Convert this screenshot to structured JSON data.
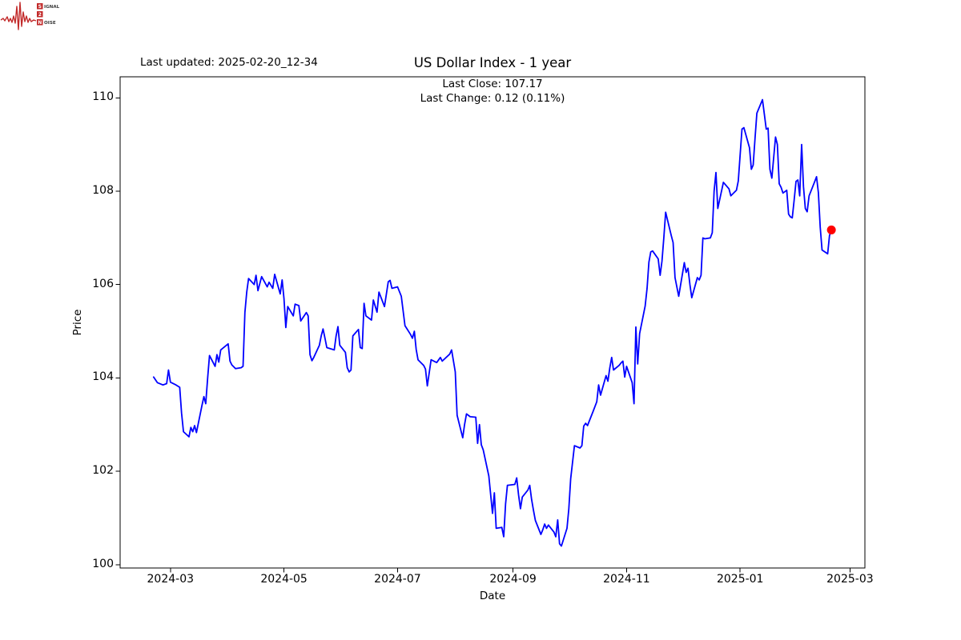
{
  "annotations": {
    "last_updated": "Last updated: 2025-02-20_12-34"
  },
  "logo": {
    "row1_initial": "S",
    "row1_rest": "IGNAL",
    "row2_initial": "2",
    "row3_initial": "N",
    "row3_rest": "OISE",
    "color": "#c22a2a"
  },
  "chart_data": {
    "type": "line",
    "title": "US Dollar Index - 1 year",
    "subtitle_line1": "Last Close: 107.17",
    "subtitle_line2": "Last Change: 0.12 (0.11%)",
    "xlabel": "Date",
    "ylabel": "Price",
    "line_color": "#0000ff",
    "marker_color": "#ff0000",
    "background": "#ffffff",
    "grid": false,
    "xlim": [
      "2024-02-03",
      "2025-03-09"
    ],
    "ylim": [
      99.93,
      110.45
    ],
    "y_ticks": [
      100,
      102,
      104,
      106,
      108,
      110
    ],
    "x_ticks": [
      {
        "date": "2024-03-01",
        "label": "2024-03"
      },
      {
        "date": "2024-05-01",
        "label": "2024-05"
      },
      {
        "date": "2024-07-01",
        "label": "2024-07"
      },
      {
        "date": "2024-09-01",
        "label": "2024-09"
      },
      {
        "date": "2024-11-01",
        "label": "2024-11"
      },
      {
        "date": "2025-01-01",
        "label": "2025-01"
      },
      {
        "date": "2025-03-01",
        "label": "2025-03"
      }
    ],
    "last_point": {
      "date": "2025-02-19",
      "price": 107.17
    },
    "series": [
      {
        "name": "US Dollar Index",
        "points": [
          [
            "2024-02-21",
            104.02
          ],
          [
            "2024-02-23",
            103.9
          ],
          [
            "2024-02-26",
            103.85
          ],
          [
            "2024-02-28",
            103.88
          ],
          [
            "2024-02-29",
            104.17
          ],
          [
            "2024-03-01",
            103.91
          ],
          [
            "2024-03-04",
            103.85
          ],
          [
            "2024-03-06",
            103.8
          ],
          [
            "2024-03-07",
            103.25
          ],
          [
            "2024-03-08",
            102.85
          ],
          [
            "2024-03-11",
            102.74
          ],
          [
            "2024-03-12",
            102.94
          ],
          [
            "2024-03-13",
            102.85
          ],
          [
            "2024-03-14",
            102.98
          ],
          [
            "2024-03-15",
            102.83
          ],
          [
            "2024-03-18",
            103.42
          ],
          [
            "2024-03-19",
            103.6
          ],
          [
            "2024-03-20",
            103.45
          ],
          [
            "2024-03-21",
            104.0
          ],
          [
            "2024-03-22",
            104.48
          ],
          [
            "2024-03-25",
            104.25
          ],
          [
            "2024-03-26",
            104.5
          ],
          [
            "2024-03-27",
            104.34
          ],
          [
            "2024-03-28",
            104.6
          ],
          [
            "2024-04-01",
            104.73
          ],
          [
            "2024-04-02",
            104.36
          ],
          [
            "2024-04-03",
            104.28
          ],
          [
            "2024-04-05",
            104.2
          ],
          [
            "2024-04-08",
            104.22
          ],
          [
            "2024-04-09",
            104.25
          ],
          [
            "2024-04-10",
            105.4
          ],
          [
            "2024-04-11",
            105.84
          ],
          [
            "2024-04-12",
            106.13
          ],
          [
            "2024-04-15",
            106.0
          ],
          [
            "2024-04-16",
            106.2
          ],
          [
            "2024-04-17",
            105.87
          ],
          [
            "2024-04-19",
            106.17
          ],
          [
            "2024-04-22",
            105.95
          ],
          [
            "2024-04-23",
            106.05
          ],
          [
            "2024-04-25",
            105.92
          ],
          [
            "2024-04-26",
            106.22
          ],
          [
            "2024-04-29",
            105.8
          ],
          [
            "2024-04-30",
            106.1
          ],
          [
            "2024-05-01",
            105.7
          ],
          [
            "2024-05-02",
            105.08
          ],
          [
            "2024-05-03",
            105.53
          ],
          [
            "2024-05-06",
            105.33
          ],
          [
            "2024-05-07",
            105.58
          ],
          [
            "2024-05-09",
            105.55
          ],
          [
            "2024-05-10",
            105.22
          ],
          [
            "2024-05-13",
            105.4
          ],
          [
            "2024-05-14",
            105.33
          ],
          [
            "2024-05-15",
            104.5
          ],
          [
            "2024-05-16",
            104.37
          ],
          [
            "2024-05-17",
            104.44
          ],
          [
            "2024-05-20",
            104.7
          ],
          [
            "2024-05-21",
            104.9
          ],
          [
            "2024-05-22",
            105.05
          ],
          [
            "2024-05-23",
            104.85
          ],
          [
            "2024-05-24",
            104.65
          ],
          [
            "2024-05-28",
            104.6
          ],
          [
            "2024-05-29",
            104.9
          ],
          [
            "2024-05-30",
            105.1
          ],
          [
            "2024-05-31",
            104.7
          ],
          [
            "2024-06-03",
            104.55
          ],
          [
            "2024-06-04",
            104.22
          ],
          [
            "2024-06-05",
            104.13
          ],
          [
            "2024-06-06",
            104.17
          ],
          [
            "2024-06-07",
            104.9
          ],
          [
            "2024-06-10",
            105.04
          ],
          [
            "2024-06-11",
            104.65
          ],
          [
            "2024-06-12",
            104.63
          ],
          [
            "2024-06-13",
            105.6
          ],
          [
            "2024-06-14",
            105.33
          ],
          [
            "2024-06-17",
            105.24
          ],
          [
            "2024-06-18",
            105.67
          ],
          [
            "2024-06-20",
            105.41
          ],
          [
            "2024-06-21",
            105.84
          ],
          [
            "2024-06-24",
            105.53
          ],
          [
            "2024-06-26",
            106.06
          ],
          [
            "2024-06-27",
            106.09
          ],
          [
            "2024-06-28",
            105.92
          ],
          [
            "2024-07-01",
            105.95
          ],
          [
            "2024-07-03",
            105.75
          ],
          [
            "2024-07-05",
            105.12
          ],
          [
            "2024-07-08",
            104.93
          ],
          [
            "2024-07-09",
            104.85
          ],
          [
            "2024-07-10",
            105.0
          ],
          [
            "2024-07-11",
            104.61
          ],
          [
            "2024-07-12",
            104.39
          ],
          [
            "2024-07-15",
            104.27
          ],
          [
            "2024-07-16",
            104.19
          ],
          [
            "2024-07-17",
            103.83
          ],
          [
            "2024-07-19",
            104.39
          ],
          [
            "2024-07-22",
            104.33
          ],
          [
            "2024-07-24",
            104.44
          ],
          [
            "2024-07-25",
            104.36
          ],
          [
            "2024-07-29",
            104.51
          ],
          [
            "2024-07-30",
            104.6
          ],
          [
            "2024-08-01",
            104.13
          ],
          [
            "2024-08-02",
            103.2
          ],
          [
            "2024-08-05",
            102.72
          ],
          [
            "2024-08-06",
            103.0
          ],
          [
            "2024-08-07",
            103.23
          ],
          [
            "2024-08-09",
            103.17
          ],
          [
            "2024-08-12",
            103.16
          ],
          [
            "2024-08-13",
            102.6
          ],
          [
            "2024-08-14",
            103.0
          ],
          [
            "2024-08-15",
            102.57
          ],
          [
            "2024-08-16",
            102.46
          ],
          [
            "2024-08-19",
            101.9
          ],
          [
            "2024-08-20",
            101.5
          ],
          [
            "2024-08-21",
            101.1
          ],
          [
            "2024-08-22",
            101.54
          ],
          [
            "2024-08-23",
            100.78
          ],
          [
            "2024-08-26",
            100.8
          ],
          [
            "2024-08-27",
            100.6
          ],
          [
            "2024-08-28",
            101.3
          ],
          [
            "2024-08-29",
            101.7
          ],
          [
            "2024-09-02",
            101.72
          ],
          [
            "2024-09-03",
            101.86
          ],
          [
            "2024-09-04",
            101.5
          ],
          [
            "2024-09-05",
            101.2
          ],
          [
            "2024-09-06",
            101.45
          ],
          [
            "2024-09-09",
            101.6
          ],
          [
            "2024-09-10",
            101.7
          ],
          [
            "2024-09-11",
            101.4
          ],
          [
            "2024-09-12",
            101.16
          ],
          [
            "2024-09-13",
            100.95
          ],
          [
            "2024-09-16",
            100.65
          ],
          [
            "2024-09-17",
            100.75
          ],
          [
            "2024-09-18",
            100.87
          ],
          [
            "2024-09-19",
            100.78
          ],
          [
            "2024-09-20",
            100.85
          ],
          [
            "2024-09-23",
            100.7
          ],
          [
            "2024-09-24",
            100.6
          ],
          [
            "2024-09-25",
            100.96
          ],
          [
            "2024-09-26",
            100.45
          ],
          [
            "2024-09-27",
            100.4
          ],
          [
            "2024-09-30",
            100.78
          ],
          [
            "2024-10-01",
            101.2
          ],
          [
            "2024-10-02",
            101.84
          ],
          [
            "2024-10-04",
            102.55
          ],
          [
            "2024-10-07",
            102.5
          ],
          [
            "2024-10-08",
            102.55
          ],
          [
            "2024-10-09",
            102.97
          ],
          [
            "2024-10-10",
            103.03
          ],
          [
            "2024-10-11",
            102.98
          ],
          [
            "2024-10-14",
            103.28
          ],
          [
            "2024-10-16",
            103.49
          ],
          [
            "2024-10-17",
            103.85
          ],
          [
            "2024-10-18",
            103.63
          ],
          [
            "2024-10-21",
            104.05
          ],
          [
            "2024-10-22",
            103.93
          ],
          [
            "2024-10-23",
            104.22
          ],
          [
            "2024-10-24",
            104.44
          ],
          [
            "2024-10-25",
            104.17
          ],
          [
            "2024-10-28",
            104.27
          ],
          [
            "2024-10-29",
            104.32
          ],
          [
            "2024-10-30",
            104.36
          ],
          [
            "2024-10-31",
            104.02
          ],
          [
            "2024-11-01",
            104.25
          ],
          [
            "2024-11-04",
            103.9
          ],
          [
            "2024-11-05",
            103.45
          ],
          [
            "2024-11-06",
            105.09
          ],
          [
            "2024-11-07",
            104.3
          ],
          [
            "2024-11-08",
            104.95
          ],
          [
            "2024-11-11",
            105.54
          ],
          [
            "2024-11-12",
            105.92
          ],
          [
            "2024-11-13",
            106.48
          ],
          [
            "2024-11-14",
            106.7
          ],
          [
            "2024-11-15",
            106.72
          ],
          [
            "2024-11-18",
            106.55
          ],
          [
            "2024-11-19",
            106.2
          ],
          [
            "2024-11-20",
            106.5
          ],
          [
            "2024-11-21",
            107.0
          ],
          [
            "2024-11-22",
            107.55
          ],
          [
            "2024-11-25",
            107.05
          ],
          [
            "2024-11-26",
            106.9
          ],
          [
            "2024-11-27",
            106.15
          ],
          [
            "2024-11-29",
            105.75
          ],
          [
            "2024-12-02",
            106.47
          ],
          [
            "2024-12-03",
            106.26
          ],
          [
            "2024-12-04",
            106.35
          ],
          [
            "2024-12-05",
            106.0
          ],
          [
            "2024-12-06",
            105.72
          ],
          [
            "2024-12-09",
            106.15
          ],
          [
            "2024-12-10",
            106.1
          ],
          [
            "2024-12-11",
            106.2
          ],
          [
            "2024-12-12",
            107.0
          ],
          [
            "2024-12-13",
            106.98
          ],
          [
            "2024-12-16",
            107.0
          ],
          [
            "2024-12-17",
            107.11
          ],
          [
            "2024-12-18",
            108.0
          ],
          [
            "2024-12-19",
            108.4
          ],
          [
            "2024-12-20",
            107.63
          ],
          [
            "2024-12-23",
            108.19
          ],
          [
            "2024-12-26",
            108.05
          ],
          [
            "2024-12-27",
            107.9
          ],
          [
            "2024-12-30",
            108.02
          ],
          [
            "2024-12-31",
            108.22
          ],
          [
            "2025-01-02",
            109.33
          ],
          [
            "2025-01-03",
            109.36
          ],
          [
            "2025-01-06",
            108.93
          ],
          [
            "2025-01-07",
            108.47
          ],
          [
            "2025-01-08",
            108.56
          ],
          [
            "2025-01-09",
            109.13
          ],
          [
            "2025-01-10",
            109.67
          ],
          [
            "2025-01-13",
            109.96
          ],
          [
            "2025-01-14",
            109.64
          ],
          [
            "2025-01-15",
            109.33
          ],
          [
            "2025-01-16",
            109.35
          ],
          [
            "2025-01-17",
            108.47
          ],
          [
            "2025-01-18",
            108.28
          ],
          [
            "2025-01-20",
            109.16
          ],
          [
            "2025-01-21",
            109.0
          ],
          [
            "2025-01-22",
            108.16
          ],
          [
            "2025-01-23",
            108.08
          ],
          [
            "2025-01-24",
            107.96
          ],
          [
            "2025-01-26",
            108.02
          ],
          [
            "2025-01-27",
            107.51
          ],
          [
            "2025-01-28",
            107.45
          ],
          [
            "2025-01-29",
            107.43
          ],
          [
            "2025-01-30",
            107.8
          ],
          [
            "2025-01-31",
            108.21
          ],
          [
            "2025-02-01",
            108.24
          ],
          [
            "2025-02-02",
            107.9
          ],
          [
            "2025-02-03",
            109.0
          ],
          [
            "2025-02-04",
            108.1
          ],
          [
            "2025-02-05",
            107.63
          ],
          [
            "2025-02-06",
            107.56
          ],
          [
            "2025-02-07",
            107.9
          ],
          [
            "2025-02-10",
            108.2
          ],
          [
            "2025-02-11",
            108.31
          ],
          [
            "2025-02-12",
            107.97
          ],
          [
            "2025-02-13",
            107.23
          ],
          [
            "2025-02-14",
            106.74
          ],
          [
            "2025-02-17",
            106.66
          ],
          [
            "2025-02-18",
            107.05
          ],
          [
            "2025-02-19",
            107.17
          ]
        ]
      }
    ]
  }
}
